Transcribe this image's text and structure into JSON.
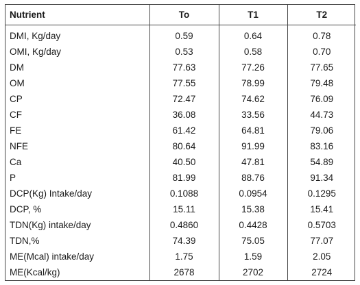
{
  "table": {
    "headers": [
      "Nutrient",
      "To",
      "T1",
      "T2"
    ],
    "rows": [
      [
        "DMI, Kg/day",
        "0.59",
        "0.64",
        "0.78"
      ],
      [
        "OMI, Kg/day",
        "0.53",
        "0.58",
        "0.70"
      ],
      [
        "DM",
        "77.63",
        "77.26",
        "77.65"
      ],
      [
        "OM",
        "77.55",
        "78.99",
        "79.48"
      ],
      [
        "CP",
        "72.47",
        "74.62",
        "76.09"
      ],
      [
        "CF",
        "36.08",
        "33.56",
        "44.73"
      ],
      [
        "FE",
        "61.42",
        "64.81",
        "79.06"
      ],
      [
        "NFE",
        "80.64",
        "91.99",
        "83.16"
      ],
      [
        "Ca",
        "40.50",
        "47.81",
        "54.89"
      ],
      [
        "P",
        "81.99",
        "88.76",
        "91.34"
      ],
      [
        "DCP(Kg) Intake/day",
        "0.1088",
        "0.0954",
        "0.1295"
      ],
      [
        "DCP, %",
        "15.11",
        "15.38",
        "15.41"
      ],
      [
        "TDN(Kg) intake/day",
        "0.4860",
        "0.4428",
        "0.5703"
      ],
      [
        "TDN,%",
        "74.39",
        "75.05",
        "77.07"
      ],
      [
        "ME(Mcal) intake/day",
        "1.75",
        "1.59",
        "2.05"
      ],
      [
        "ME(Kcal/kg)",
        "2678",
        "2702",
        "2724"
      ]
    ]
  }
}
